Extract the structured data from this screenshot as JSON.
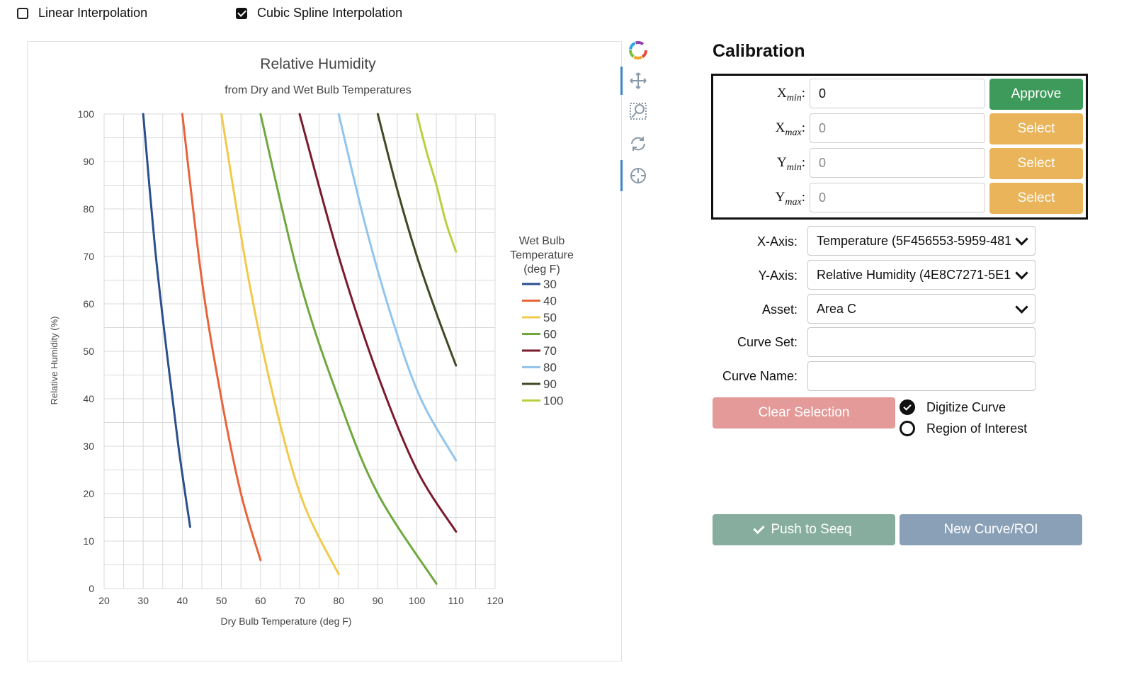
{
  "options": {
    "linear": {
      "label": "Linear Interpolation",
      "checked": false
    },
    "cubic": {
      "label": "Cubic Spline Interpolation",
      "checked": true
    }
  },
  "toolbar": {
    "icons": [
      "logo-icon",
      "move-icon",
      "zoom-icon",
      "reset-icon",
      "crosshair-icon"
    ]
  },
  "calibration": {
    "title": "Calibration",
    "rows": [
      {
        "label_main": "X",
        "label_sub": "min",
        "value": "0",
        "button": "Approve"
      },
      {
        "label_main": "X",
        "label_sub": "max",
        "value": "0",
        "button": "Select"
      },
      {
        "label_main": "Y",
        "label_sub": "min",
        "value": "0",
        "button": "Select"
      },
      {
        "label_main": "Y",
        "label_sub": "max",
        "value": "0",
        "button": "Select"
      }
    ]
  },
  "form": {
    "x_axis": {
      "label": "X-Axis:",
      "value": "Temperature (5F456553-5959-481"
    },
    "y_axis": {
      "label": "Y-Axis:",
      "value": "Relative Humidity (4E8C7271-5E1"
    },
    "asset": {
      "label": "Asset:",
      "value": "Area C"
    },
    "curve_set": {
      "label": "Curve Set:",
      "value": ""
    },
    "curve_name": {
      "label": "Curve Name:",
      "value": ""
    }
  },
  "actions": {
    "clear": "Clear Selection",
    "digitize": "Digitize Curve",
    "roi": "Region of Interest",
    "push": "Push to Seeq",
    "new_curve": "New Curve/ROI"
  },
  "colors": {
    "approve": "#3d9a5b",
    "select": "#e9b45a",
    "clear": "#e39a98",
    "push": "#86ad9d",
    "new_curve": "#8aa0b7"
  },
  "chart_data": {
    "type": "line",
    "title": "Relative Humidity",
    "subtitle": "from Dry and Wet Bulb Temperatures",
    "xlabel": "Dry Bulb Temperature (deg F)",
    "ylabel": "Relative Humidity (%)",
    "xlim": [
      20,
      120
    ],
    "ylim": [
      0,
      100
    ],
    "xticks": [
      20,
      30,
      40,
      50,
      60,
      70,
      80,
      90,
      100,
      110,
      120
    ],
    "yticks": [
      0,
      10,
      20,
      30,
      40,
      50,
      60,
      70,
      80,
      90,
      100
    ],
    "grid": true,
    "legend_title": [
      "Wet Bulb",
      "Temperature",
      "(deg F)"
    ],
    "legend_position": "right",
    "series": [
      {
        "name": "30",
        "color": "#2b4f8c",
        "x": [
          30,
          33,
          36,
          39,
          42
        ],
        "y": [
          100,
          72,
          50,
          30,
          13
        ]
      },
      {
        "name": "40",
        "color": "#e8643a",
        "x": [
          40,
          45,
          50,
          55,
          60
        ],
        "y": [
          100,
          65,
          40,
          20,
          6
        ]
      },
      {
        "name": "50",
        "color": "#f2c94c",
        "x": [
          50,
          57,
          64,
          71,
          80
        ],
        "y": [
          100,
          65,
          38,
          18,
          3
        ]
      },
      {
        "name": "60",
        "color": "#6fa83f",
        "x": [
          60,
          70,
          80,
          90,
          105
        ],
        "y": [
          100,
          65,
          40,
          20,
          1
        ]
      },
      {
        "name": "70",
        "color": "#7b1a2e",
        "x": [
          70,
          80,
          90,
          100,
          110
        ],
        "y": [
          100,
          70,
          45,
          25,
          12
        ]
      },
      {
        "name": "80",
        "color": "#92c5ee",
        "x": [
          80,
          87,
          94,
          101,
          110
        ],
        "y": [
          100,
          76,
          56,
          40,
          27
        ]
      },
      {
        "name": "90",
        "color": "#3e4a24",
        "x": [
          90,
          95,
          100,
          105,
          110
        ],
        "y": [
          100,
          84,
          70,
          58,
          47
        ]
      },
      {
        "name": "100",
        "color": "#b5d13f",
        "x": [
          100,
          102.5,
          105,
          107.5,
          110
        ],
        "y": [
          100,
          92,
          85,
          77,
          71
        ]
      }
    ]
  }
}
